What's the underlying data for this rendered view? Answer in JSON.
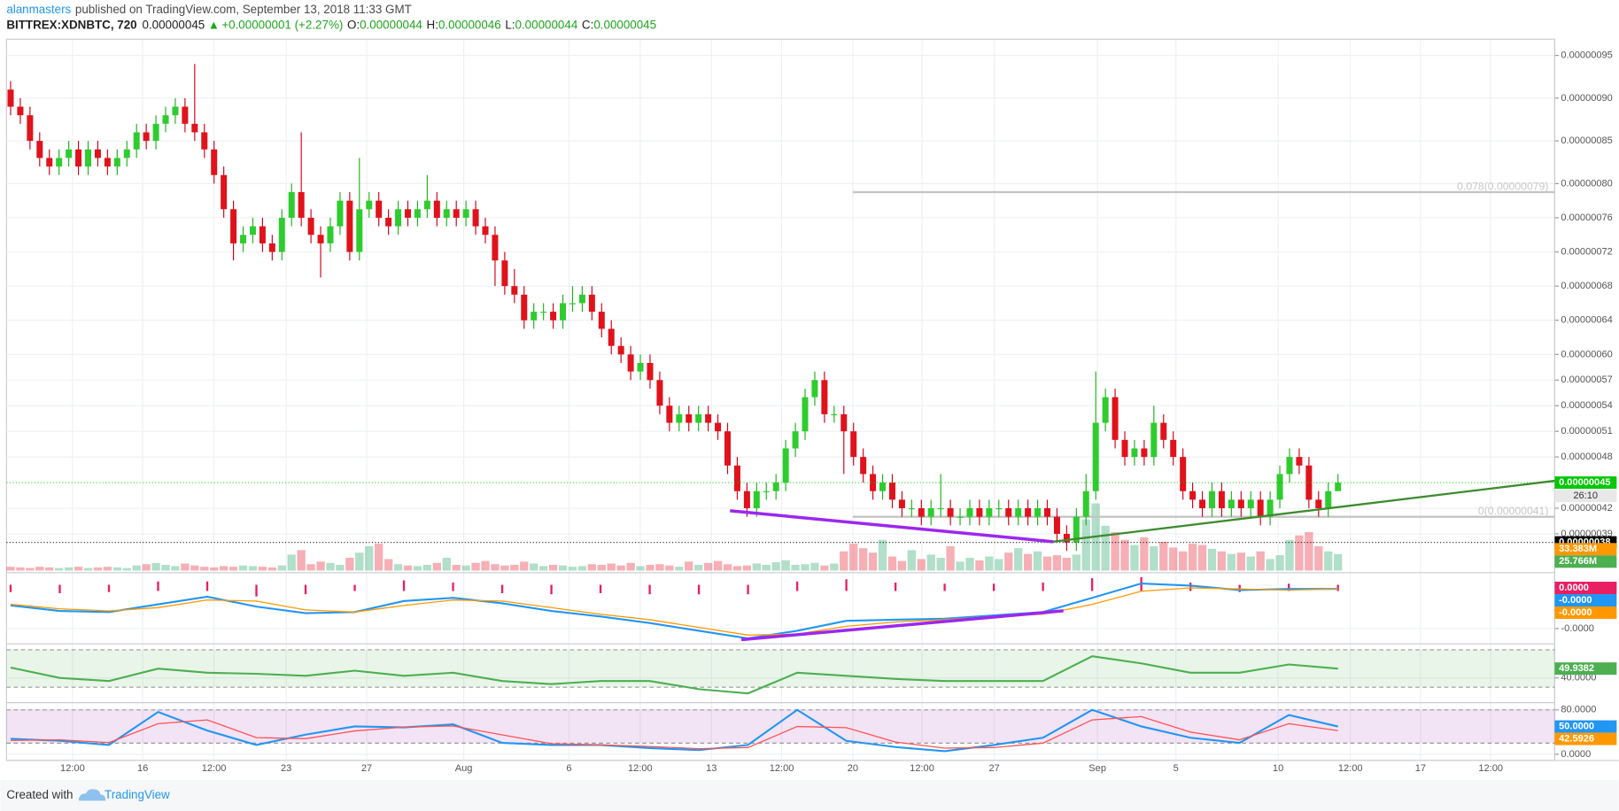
{
  "header": {
    "author": "alanmasters",
    "published": "published on TradingView.com, September 13, 2018 11:33 GMT",
    "symbol": "BITTREX:XDNBTC, 720",
    "last": "0.00000045",
    "arrow": "▲",
    "change": "+0.00000001 (+2.27%)",
    "o_label": "O:",
    "o": "0.00000044",
    "h_label": "H:",
    "h": "0.00000046",
    "l_label": "L:",
    "l": "0.00000044",
    "c_label": "C:",
    "c": "0.00000045"
  },
  "footer": {
    "created": "Created with",
    "brand": "TradingView"
  },
  "chart_data": [
    {
      "type": "candlestick",
      "x_labels": [
        "12:00",
        "16",
        "12:00",
        "23",
        "27",
        "Aug",
        "6",
        "12:00",
        "13",
        "12:00",
        "20",
        "12:00",
        "27",
        "Sep",
        "5",
        "10",
        "12:00",
        "17",
        "12:00"
      ],
      "open": [
        9.1e-07,
        8.9e-07,
        8.8e-07,
        8.5e-07,
        8.3e-07,
        8.2e-07,
        8.3e-07,
        8.4e-07,
        8.2e-07,
        8.4e-07,
        8.3e-07,
        8.2e-07,
        8.3e-07,
        8.4e-07,
        8.6e-07,
        8.5e-07,
        8.7e-07,
        8.8e-07,
        8.9e-07,
        8.7e-07,
        8.6e-07,
        8.4e-07,
        8.1e-07,
        7.7e-07,
        7.3e-07,
        7.4e-07,
        7.5e-07,
        7.3e-07,
        7.2e-07,
        7.6e-07,
        7.9e-07,
        7.6e-07,
        7.4e-07,
        7.3e-07,
        7.5e-07,
        7.8e-07,
        7.2e-07,
        7.7e-07,
        7.8e-07,
        7.6e-07,
        7.5e-07,
        7.7e-07,
        7.6e-07,
        7.7e-07,
        7.8e-07,
        7.6e-07,
        7.7e-07,
        7.6e-07,
        7.7e-07,
        7.5e-07,
        7.4e-07,
        7.1e-07,
        6.8e-07,
        6.7e-07,
        6.4e-07,
        6.5e-07,
        6.5e-07,
        6.4e-07,
        6.6e-07,
        6.6e-07,
        6.7e-07,
        6.5e-07,
        6.3e-07,
        6.1e-07,
        6e-07,
        5.8e-07,
        5.9e-07,
        5.7e-07,
        5.4e-07,
        5.2e-07,
        5.3e-07,
        5.2e-07,
        5.3e-07,
        5.2e-07,
        5.1e-07,
        4.7e-07,
        4.4e-07,
        4.2e-07,
        4.4e-07,
        4.4e-07,
        4.5e-07,
        4.9e-07,
        5.1e-07,
        5.5e-07,
        5.7e-07,
        5.3e-07,
        5.3e-07,
        5.1e-07,
        4.8e-07,
        4.6e-07,
        4.4e-07,
        4.5e-07,
        4.3e-07,
        4.2e-07,
        4.2e-07,
        4.1e-07,
        4.2e-07,
        4.2e-07,
        4.1e-07,
        4.1e-07,
        4.2e-07,
        4.1e-07,
        4.2e-07,
        4.2e-07,
        4.1e-07,
        4.2e-07,
        4.1e-07,
        4.2e-07,
        4.1e-07,
        3.9e-07,
        3.8e-07,
        4.1e-07,
        4.4e-07,
        5.2e-07,
        5.5e-07,
        5e-07,
        4.8e-07,
        4.9e-07,
        4.8e-07,
        5.2e-07,
        5e-07,
        4.8e-07,
        4.4e-07,
        4.3e-07,
        4.2e-07,
        4.4e-07,
        4.2e-07,
        4.3e-07,
        4.2e-07,
        4.3e-07,
        4.1e-07,
        4.3e-07,
        4.6e-07,
        4.8e-07,
        4.7e-07,
        4.3e-07,
        4.2e-07,
        4.4e-07
      ],
      "high": [
        9.2e-07,
        9e-07,
        8.9e-07,
        8.6e-07,
        8.4e-07,
        8.4e-07,
        8.5e-07,
        8.5e-07,
        8.5e-07,
        8.5e-07,
        8.4e-07,
        8.4e-07,
        8.5e-07,
        8.7e-07,
        8.7e-07,
        8.8e-07,
        8.9e-07,
        9e-07,
        9e-07,
        9.4e-07,
        8.7e-07,
        8.5e-07,
        8.2e-07,
        7.8e-07,
        7.5e-07,
        7.6e-07,
        7.6e-07,
        7.4e-07,
        7.7e-07,
        8e-07,
        8.6e-07,
        7.7e-07,
        7.5e-07,
        7.6e-07,
        7.9e-07,
        7.9e-07,
        8.3e-07,
        7.9e-07,
        7.9e-07,
        7.7e-07,
        7.8e-07,
        7.8e-07,
        7.8e-07,
        8.1e-07,
        7.9e-07,
        7.8e-07,
        7.8e-07,
        7.8e-07,
        7.8e-07,
        7.6e-07,
        7.5e-07,
        7.2e-07,
        7e-07,
        6.8e-07,
        6.6e-07,
        6.6e-07,
        6.6e-07,
        6.7e-07,
        6.8e-07,
        6.8e-07,
        6.8e-07,
        6.6e-07,
        6.4e-07,
        6.2e-07,
        6.1e-07,
        6e-07,
        6e-07,
        5.8e-07,
        5.5e-07,
        5.4e-07,
        5.4e-07,
        5.4e-07,
        5.4e-07,
        5.3e-07,
        5.2e-07,
        4.8e-07,
        4.5e-07,
        4.5e-07,
        4.5e-07,
        4.6e-07,
        5e-07,
        5.2e-07,
        5.6e-07,
        5.8e-07,
        5.8e-07,
        5.4e-07,
        5.4e-07,
        5.2e-07,
        4.9e-07,
        4.7e-07,
        4.6e-07,
        4.6e-07,
        4.4e-07,
        4.3e-07,
        4.3e-07,
        4.3e-07,
        4.6e-07,
        4.3e-07,
        4.2e-07,
        4.3e-07,
        4.3e-07,
        4.3e-07,
        4.3e-07,
        4.3e-07,
        4.3e-07,
        4.3e-07,
        4.3e-07,
        4.3e-07,
        4.2e-07,
        4e-07,
        4.2e-07,
        4.6e-07,
        5.8e-07,
        5.6e-07,
        5.6e-07,
        5.1e-07,
        5e-07,
        5e-07,
        5.4e-07,
        5.3e-07,
        5.1e-07,
        4.9e-07,
        4.5e-07,
        4.4e-07,
        4.5e-07,
        4.5e-07,
        4.4e-07,
        4.4e-07,
        4.4e-07,
        4.4e-07,
        4.4e-07,
        4.7e-07,
        4.9e-07,
        4.9e-07,
        4.8e-07,
        4.4e-07,
        4.5e-07,
        4.6e-07
      ],
      "low": [
        8.8e-07,
        8.7e-07,
        8.4e-07,
        8.2e-07,
        8.1e-07,
        8.1e-07,
        8.2e-07,
        8.1e-07,
        8.1e-07,
        8.2e-07,
        8.1e-07,
        8.1e-07,
        8.2e-07,
        8.3e-07,
        8.4e-07,
        8.4e-07,
        8.6e-07,
        8.7e-07,
        8.6e-07,
        8.5e-07,
        8.3e-07,
        8e-07,
        7.6e-07,
        7.1e-07,
        7.2e-07,
        7.3e-07,
        7.2e-07,
        7.1e-07,
        7.1e-07,
        7.5e-07,
        7.5e-07,
        7.3e-07,
        6.9e-07,
        7.2e-07,
        7.4e-07,
        7.1e-07,
        7.1e-07,
        7.6e-07,
        7.5e-07,
        7.4e-07,
        7.4e-07,
        7.5e-07,
        7.5e-07,
        7.6e-07,
        7.5e-07,
        7.5e-07,
        7.5e-07,
        7.5e-07,
        7.4e-07,
        7.3e-07,
        6.8e-07,
        6.7e-07,
        6.6e-07,
        6.3e-07,
        6.3e-07,
        6.4e-07,
        6.3e-07,
        6.3e-07,
        6.5e-07,
        6.5e-07,
        6.4e-07,
        6.2e-07,
        6e-07,
        5.9e-07,
        5.7e-07,
        5.7e-07,
        5.6e-07,
        5.3e-07,
        5.1e-07,
        5.1e-07,
        5.1e-07,
        5.1e-07,
        5.1e-07,
        5e-07,
        4.6e-07,
        4.3e-07,
        4.1e-07,
        4.1e-07,
        4.3e-07,
        4.3e-07,
        4.4e-07,
        4.8e-07,
        5e-07,
        5.4e-07,
        5.2e-07,
        5.2e-07,
        4.6e-07,
        4.7e-07,
        4.5e-07,
        4.3e-07,
        4.3e-07,
        4.2e-07,
        4.1e-07,
        4.1e-07,
        4e-07,
        4e-07,
        4.1e-07,
        4e-07,
        4e-07,
        4e-07,
        4e-07,
        4e-07,
        4.1e-07,
        4e-07,
        4e-07,
        4e-07,
        4e-07,
        4e-07,
        3.8e-07,
        3.7e-07,
        3.7e-07,
        4e-07,
        4.3e-07,
        5.1e-07,
        4.9e-07,
        4.7e-07,
        4.7e-07,
        4.7e-07,
        4.7e-07,
        4.9e-07,
        4.7e-07,
        4.3e-07,
        4.2e-07,
        4.1e-07,
        4.1e-07,
        4.1e-07,
        4.1e-07,
        4.1e-07,
        4.1e-07,
        4e-07,
        4e-07,
        4.2e-07,
        4.5e-07,
        4.6e-07,
        4.2e-07,
        4.1e-07,
        4.1e-07,
        4.4e-07
      ],
      "close": [
        8.9e-07,
        8.8e-07,
        8.5e-07,
        8.3e-07,
        8.2e-07,
        8.3e-07,
        8.4e-07,
        8.2e-07,
        8.4e-07,
        8.3e-07,
        8.2e-07,
        8.3e-07,
        8.4e-07,
        8.6e-07,
        8.5e-07,
        8.7e-07,
        8.8e-07,
        8.9e-07,
        8.7e-07,
        8.6e-07,
        8.4e-07,
        8.1e-07,
        7.7e-07,
        7.3e-07,
        7.4e-07,
        7.5e-07,
        7.3e-07,
        7.2e-07,
        7.6e-07,
        7.9e-07,
        7.6e-07,
        7.4e-07,
        7.3e-07,
        7.5e-07,
        7.8e-07,
        7.2e-07,
        7.7e-07,
        7.8e-07,
        7.6e-07,
        7.5e-07,
        7.7e-07,
        7.6e-07,
        7.7e-07,
        7.8e-07,
        7.6e-07,
        7.7e-07,
        7.6e-07,
        7.7e-07,
        7.5e-07,
        7.4e-07,
        7.1e-07,
        6.8e-07,
        6.7e-07,
        6.4e-07,
        6.5e-07,
        6.5e-07,
        6.4e-07,
        6.6e-07,
        6.6e-07,
        6.7e-07,
        6.5e-07,
        6.3e-07,
        6.1e-07,
        6e-07,
        5.8e-07,
        5.9e-07,
        5.7e-07,
        5.4e-07,
        5.2e-07,
        5.3e-07,
        5.2e-07,
        5.3e-07,
        5.2e-07,
        5.1e-07,
        4.7e-07,
        4.4e-07,
        4.2e-07,
        4.4e-07,
        4.4e-07,
        4.5e-07,
        4.9e-07,
        5.1e-07,
        5.5e-07,
        5.7e-07,
        5.3e-07,
        5.3e-07,
        5.1e-07,
        4.8e-07,
        4.6e-07,
        4.4e-07,
        4.5e-07,
        4.3e-07,
        4.2e-07,
        4.2e-07,
        4.1e-07,
        4.2e-07,
        4.2e-07,
        4.1e-07,
        4.1e-07,
        4.2e-07,
        4.1e-07,
        4.2e-07,
        4.2e-07,
        4.1e-07,
        4.2e-07,
        4.1e-07,
        4.2e-07,
        4.1e-07,
        3.9e-07,
        3.8e-07,
        4.1e-07,
        4.4e-07,
        5.2e-07,
        5.5e-07,
        5e-07,
        4.8e-07,
        4.9e-07,
        4.8e-07,
        5.2e-07,
        5e-07,
        4.8e-07,
        4.4e-07,
        4.3e-07,
        4.2e-07,
        4.4e-07,
        4.2e-07,
        4.3e-07,
        4.2e-07,
        4.3e-07,
        4.1e-07,
        4.3e-07,
        4.6e-07,
        4.8e-07,
        4.7e-07,
        4.3e-07,
        4.2e-07,
        4.4e-07,
        4.5e-07
      ],
      "up_color": "#53b987",
      "down_color": "#eb4d5c",
      "ylim": [
        3.47e-07,
        9.69e-07
      ],
      "yticks": [
        {
          "value": 9.5e-07,
          "label": "0.00000095"
        },
        {
          "value": 9e-07,
          "label": "0.00000090"
        },
        {
          "value": 8.5e-07,
          "label": "0.00000085"
        },
        {
          "value": 8e-07,
          "label": "0.00000080"
        },
        {
          "value": 7.6e-07,
          "label": "0.00000076"
        },
        {
          "value": 7.2e-07,
          "label": "0.00000072"
        },
        {
          "value": 6.8e-07,
          "label": "0.00000068"
        },
        {
          "value": 6.4e-07,
          "label": "0.00000064"
        },
        {
          "value": 6e-07,
          "label": "0.00000060"
        },
        {
          "value": 5.7e-07,
          "label": "0.00000057"
        },
        {
          "value": 5.4e-07,
          "label": "0.00000054"
        },
        {
          "value": 5.1e-07,
          "label": "0.00000051"
        },
        {
          "value": 4.8e-07,
          "label": "0.00000048"
        },
        {
          "value": 4.2e-07,
          "label": "0.00000042"
        },
        {
          "value": 3.9e-07,
          "label": "0.00000039"
        }
      ],
      "grid": true,
      "markers": [
        {
          "value": 4.5e-07,
          "label": "0.00000045",
          "color": "#00c800"
        },
        {
          "value": 3.8e-07,
          "label": "0.00000038",
          "color": "#000000"
        }
      ],
      "countdown": "26:10",
      "levels": [
        {
          "value": 7.9e-07,
          "label": "0.078(0.00000079)"
        },
        {
          "value": 4.1e-07,
          "label": "0(0.00000041)"
        }
      ],
      "volume": {
        "values": [
          6,
          5,
          4,
          6,
          5,
          4,
          5,
          6,
          4,
          5,
          6,
          5,
          4,
          8,
          10,
          12,
          9,
          7,
          11,
          8,
          6,
          5,
          7,
          6,
          8,
          7,
          6,
          5,
          8,
          25,
          32,
          10,
          14,
          12,
          9,
          20,
          28,
          38,
          42,
          18,
          10,
          8,
          7,
          9,
          12,
          20,
          9,
          8,
          12,
          15,
          10,
          8,
          9,
          14,
          11,
          7,
          9,
          8,
          6,
          7,
          10,
          9,
          11,
          8,
          12,
          7,
          9,
          10,
          8,
          6,
          14,
          9,
          12,
          15,
          10,
          7,
          8,
          11,
          9,
          13,
          16,
          9,
          10,
          12,
          8,
          11,
          30,
          42,
          35,
          28,
          48,
          22,
          15,
          32,
          18,
          25,
          20,
          38,
          14,
          20,
          16,
          22,
          18,
          28,
          35,
          26,
          30,
          22,
          24,
          20,
          25,
          80,
          105,
          70,
          60,
          48,
          40,
          52,
          38,
          45,
          36,
          30,
          42,
          40,
          34,
          30,
          26,
          28,
          22,
          30,
          18,
          24,
          48,
          55,
          60,
          38,
          30,
          25.766
        ],
        "ylim": [
          0,
          830
        ],
        "markers": [
          {
            "value": 33.383,
            "label": "33.383M",
            "color": "#ff9800"
          },
          {
            "value": 25.766,
            "label": "25.766M",
            "color": "#4caf50"
          }
        ]
      }
    },
    {
      "type": "macd",
      "series": [
        {
          "color": "#2196f3",
          "values": [
            -1.6e-08,
            -2.1e-08,
            -2.2e-08,
            -1.5e-08,
            -8e-09,
            -1.7e-08,
            -2.3e-08,
            -2.2e-08,
            -1.2e-08,
            -9e-09,
            -1.4e-08,
            -2.1e-08,
            -2.6e-08,
            -3.2e-08,
            -3.9e-08,
            -4.6e-08,
            -3.9e-08,
            -3e-08,
            -2.9e-08,
            -2.8e-08,
            -2.5e-08,
            -2.2e-08,
            -9e-09,
            4e-09,
            2e-09,
            -2e-09,
            -1e-09,
            -1e-09
          ]
        },
        {
          "color": "#ff9800",
          "values": [
            -1.5e-08,
            -1.9e-08,
            -2.1e-08,
            -1.8e-08,
            -1.1e-08,
            -1.2e-08,
            -2e-08,
            -2.2e-08,
            -1.6e-08,
            -1.1e-08,
            -1.2e-08,
            -1.8e-08,
            -2.4e-08,
            -2.9e-08,
            -3.6e-08,
            -4.3e-08,
            -4.2e-08,
            -3.5e-08,
            -3.1e-08,
            -2.9e-08,
            -2.6e-08,
            -2.4e-08,
            -1.5e-08,
            -3e-09,
            0,
            -1e-09,
            -2e-09,
            -1e-09
          ]
        }
      ],
      "histogram": {
        "color": "#e91e63",
        "values": [
          -1e-09,
          -2e-09,
          -1e-09,
          3e-09,
          3e-09,
          -5e-09,
          -3e-09,
          0,
          4e-09,
          2e-09,
          -2e-09,
          -3e-09,
          -2e-09,
          -3e-09,
          -3e-09,
          -3e-09,
          3e-09,
          5e-09,
          2e-09,
          1e-09,
          1e-09,
          2e-09,
          6e-09,
          7e-09,
          2e-09,
          -1e-09,
          1e-09,
          0
        ]
      },
      "ylim": [
        -5e-08,
        1.2e-08
      ],
      "yticks": [
        {
          "value": -3.7e-08,
          "label": "-0.0000"
        }
      ],
      "markers": [
        {
          "value": 0,
          "label": "0.0000",
          "color": "#e91e63"
        },
        {
          "value": -1e-09,
          "label": "-0.0000",
          "color": "#2196f3"
        },
        {
          "value": -1e-09,
          "label": "-0.0000",
          "color": "#ff9800"
        }
      ]
    },
    {
      "type": "line",
      "series": [
        {
          "color": "#4caf50",
          "values": [
            51.0,
            40.0,
            36.7,
            49.9,
            45.5,
            44.4,
            42.2,
            47.7,
            42.2,
            45.5,
            36.7,
            33.4,
            36.7,
            36.7,
            27.9,
            23.4,
            45.5,
            42.2,
            38.9,
            36.7,
            36.7,
            36.7,
            63.2,
            55.5,
            45.5,
            45.5,
            54.3,
            49.9382
          ]
        }
      ],
      "ylim": [
        14.6,
        75.3
      ],
      "band": [
        30,
        70
      ],
      "band_color": "#4caf50",
      "yticks": [
        {
          "value": 40,
          "label": "40.0000"
        }
      ],
      "markers": [
        {
          "value": 49.9382,
          "label": "49.9382",
          "color": "#4caf50"
        }
      ]
    },
    {
      "type": "line",
      "series": [
        {
          "color": "#2196f3",
          "values": [
            27.9,
            24.2,
            16.7,
            76.3,
            42.8,
            16.7,
            35.3,
            50.2,
            48.4,
            54.0,
            20.5,
            16.7,
            16.7,
            11.2,
            7.4,
            16.7,
            80.0,
            24.2,
            13.0,
            5.6,
            16.7,
            29.8,
            80.0,
            50.2,
            29.8,
            20.5,
            70.7,
            50
          ]
        },
        {
          "color": "#ff5252",
          "values": [
            25,
            26,
            21,
            55,
            62,
            30,
            28,
            42,
            49,
            51,
            35,
            19,
            17,
            14,
            10,
            12,
            50,
            48,
            22,
            11,
            12,
            20,
            62,
            68,
            40,
            26,
            55,
            42.5926
          ]
        }
      ],
      "ylim": [
        -11.2,
        91.2
      ],
      "band": [
        20,
        80
      ],
      "band_color": "#9c27b0",
      "yticks": [
        {
          "value": 80,
          "label": "80.0000"
        },
        {
          "value": 0,
          "label": "0.0000"
        }
      ],
      "markers": [
        {
          "value": 50,
          "label": "50.0000",
          "color": "#2196f3"
        },
        {
          "value": 42.5926,
          "label": "42.5926",
          "color": "#ff9800"
        }
      ]
    }
  ]
}
